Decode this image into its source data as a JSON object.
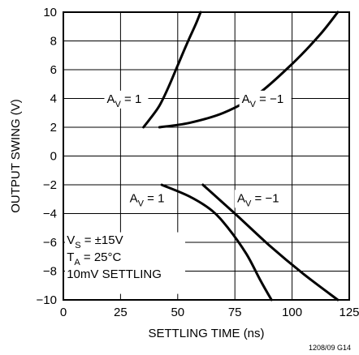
{
  "chart_data": {
    "type": "line",
    "title": "",
    "xlabel": "SETTLING TIME (ns)",
    "ylabel": "OUTPUT SWING (V)",
    "xlim": [
      0,
      125
    ],
    "ylim": [
      -10,
      10
    ],
    "xticks": [
      0,
      25,
      50,
      75,
      100,
      125
    ],
    "yticks": [
      -10,
      -8,
      -6,
      -4,
      -2,
      0,
      2,
      4,
      6,
      8,
      10
    ],
    "grid": true,
    "series": [
      {
        "name": "AV = 1",
        "side": "positive",
        "points": [
          [
            35,
            2
          ],
          [
            38,
            2.6
          ],
          [
            42,
            3.5
          ],
          [
            46,
            4.8
          ],
          [
            50,
            6.3
          ],
          [
            54,
            7.8
          ],
          [
            58,
            9.2
          ],
          [
            60,
            10
          ]
        ]
      },
      {
        "name": "AV = −1",
        "side": "positive",
        "points": [
          [
            42,
            2
          ],
          [
            55,
            2.3
          ],
          [
            70,
            3.0
          ],
          [
            85,
            4.3
          ],
          [
            100,
            6.4
          ],
          [
            112,
            8.4
          ],
          [
            120,
            10
          ]
        ]
      },
      {
        "name": "AV = 1",
        "side": "negative",
        "points": [
          [
            43,
            -2
          ],
          [
            55,
            -2.8
          ],
          [
            65,
            -3.8
          ],
          [
            72,
            -5.0
          ],
          [
            80,
            -6.8
          ],
          [
            86,
            -8.6
          ],
          [
            91,
            -10
          ]
        ]
      },
      {
        "name": "AV = −1",
        "side": "negative",
        "points": [
          [
            61,
            -2
          ],
          [
            75,
            -4.0
          ],
          [
            90,
            -6.2
          ],
          [
            105,
            -8.2
          ],
          [
            120,
            -10
          ]
        ]
      }
    ],
    "annotations": [
      {
        "base": "A",
        "sub": "V",
        "rest": " = 1",
        "x": 19,
        "y": 3.7
      },
      {
        "base": "A",
        "sub": "V",
        "rest": " = −1",
        "x": 78,
        "y": 3.7
      },
      {
        "base": "A",
        "sub": "V",
        "rest": " = 1",
        "x": 29,
        "y": -3.2
      },
      {
        "base": "A",
        "sub": "V",
        "rest": " = −1",
        "x": 76,
        "y": -3.2
      }
    ],
    "conditions": [
      {
        "base": "V",
        "sub": "S",
        "rest": " = ±15V"
      },
      {
        "base": "T",
        "sub": "A",
        "rest": " = 25°C"
      },
      {
        "base": "",
        "sub": "",
        "rest": "10mV SETTLING"
      }
    ],
    "figure_id": "1208/09 G14"
  }
}
